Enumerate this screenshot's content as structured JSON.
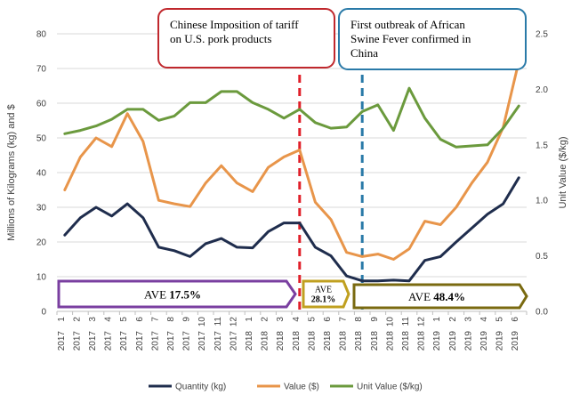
{
  "chart_data": {
    "type": "line",
    "categories": [
      [
        "2017",
        "1"
      ],
      [
        "2017",
        "2"
      ],
      [
        "2017",
        "3"
      ],
      [
        "2017",
        "4"
      ],
      [
        "2017",
        "5"
      ],
      [
        "2017",
        "6"
      ],
      [
        "2017",
        "7"
      ],
      [
        "2017",
        "8"
      ],
      [
        "2017",
        "9"
      ],
      [
        "2017",
        "10"
      ],
      [
        "2017",
        "11"
      ],
      [
        "2017",
        "12"
      ],
      [
        "2018",
        "1"
      ],
      [
        "2018",
        "2"
      ],
      [
        "2018",
        "3"
      ],
      [
        "2018",
        "4"
      ],
      [
        "2018",
        "5"
      ],
      [
        "2018",
        "6"
      ],
      [
        "2018",
        "7"
      ],
      [
        "2018",
        "8"
      ],
      [
        "2018",
        "9"
      ],
      [
        "2018",
        "10"
      ],
      [
        "2018",
        "11"
      ],
      [
        "2018",
        "12"
      ],
      [
        "2019",
        "1"
      ],
      [
        "2019",
        "2"
      ],
      [
        "2019",
        "3"
      ],
      [
        "2019",
        "4"
      ],
      [
        "2019",
        "5"
      ],
      [
        "2019",
        "6"
      ]
    ],
    "series": [
      {
        "name": "Quantity (kg)",
        "axis": "left",
        "color": "#1f2d4d",
        "values": [
          22,
          27,
          30,
          27.5,
          31,
          27,
          18.5,
          17.5,
          15.8,
          19.5,
          21,
          18.5,
          18.3,
          23,
          25.5,
          25.5,
          18.5,
          16,
          10.2,
          8.8,
          8.8,
          9,
          8.8,
          14.7,
          15.8,
          20,
          24,
          28,
          31,
          38.5
        ]
      },
      {
        "name": "Value ($)",
        "axis": "left",
        "color": "#e8954a",
        "values": [
          35,
          44.5,
          50,
          47.5,
          57,
          49,
          32,
          31,
          30.2,
          37,
          42,
          37,
          34.5,
          41.5,
          44.5,
          46.5,
          31.5,
          26.5,
          17,
          15.8,
          16.5,
          15,
          18,
          26,
          25,
          30,
          37,
          43,
          53,
          72
        ]
      },
      {
        "name": "Unit Value ($/kg)",
        "axis": "right",
        "color": "#6b9a3d",
        "values": [
          1.6,
          1.63,
          1.67,
          1.73,
          1.82,
          1.82,
          1.72,
          1.76,
          1.88,
          1.88,
          1.98,
          1.98,
          1.88,
          1.82,
          1.74,
          1.82,
          1.7,
          1.65,
          1.66,
          1.8,
          1.86,
          1.63,
          2.01,
          1.74,
          1.55,
          1.48,
          1.49,
          1.5,
          1.65,
          1.85
        ]
      }
    ],
    "y_left": {
      "label": "Millions of Kilograms (kg) and $",
      "min": 0,
      "max": 80,
      "ticks": [
        0,
        10,
        20,
        30,
        40,
        50,
        60,
        70,
        80
      ]
    },
    "y_right": {
      "label": "Unit Value ($/kg)",
      "min": 0,
      "max": 2.5,
      "ticks": [
        "0.0",
        "0.5",
        "1.0",
        "1.5",
        "2.0",
        "2.5"
      ]
    },
    "grid": "horizontal",
    "legend_position": "bottom",
    "annotations": {
      "events": [
        {
          "text_lines": [
            "Chinese Imposition of tariff",
            "on U.S. pork products"
          ],
          "at_index": 15,
          "border": "#c0282d",
          "line_color": "#e0202a"
        },
        {
          "text_lines": [
            "First outbreak of African",
            "Swine Fever confirmed in",
            "China"
          ],
          "at_index": 19,
          "border": "#2a7aa8",
          "line_color": "#2a7aa8"
        }
      ],
      "periods": [
        {
          "label": "AVE",
          "value": "17.5%",
          "from_index": 0,
          "to_index": 15,
          "color": "#7a3fa0"
        },
        {
          "label": "AVE",
          "value": "28.1%",
          "from_index": 15,
          "to_index": 18,
          "color": "#c0a020"
        },
        {
          "label": "AVE",
          "value": "48.4%",
          "from_index": 19,
          "to_index": 29,
          "color": "#7a6a10"
        }
      ]
    }
  }
}
